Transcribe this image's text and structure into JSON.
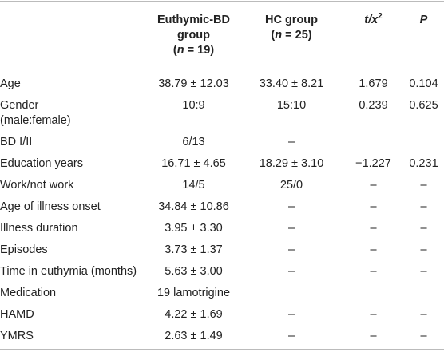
{
  "table": {
    "header": [
      null,
      [
        [
          {
            "text": "Euthymic-BD"
          }
        ],
        [
          {
            "text": "group"
          }
        ],
        [
          {
            "text": "("
          },
          {
            "text": "n",
            "italic": true
          },
          {
            "text": " = 19)"
          }
        ]
      ],
      [
        [
          {
            "text": "HC group"
          }
        ],
        [
          {
            "text": "("
          },
          {
            "text": "n",
            "italic": true
          },
          {
            "text": " = 25)"
          }
        ]
      ],
      [
        [
          {
            "text": "t/x",
            "italic": true
          },
          {
            "text": "2",
            "sup": true
          }
        ]
      ],
      [
        [
          {
            "text": "P",
            "italic": true
          }
        ]
      ]
    ],
    "rows": [
      [
        [
          "Age"
        ],
        "38.79 ± 12.03",
        "33.40 ± 8.21",
        "1.679",
        "0.104"
      ],
      [
        [
          "Gender",
          "(male:female)"
        ],
        "10:9",
        "15:10",
        "0.239",
        "0.625"
      ],
      [
        [
          "BD I/II"
        ],
        "6/13",
        "–",
        null,
        null
      ],
      [
        [
          "Education years"
        ],
        "16.71 ± 4.65",
        "18.29 ± 3.10",
        "−1.227",
        "0.231"
      ],
      [
        [
          "Work/not work"
        ],
        "14/5",
        "25/0",
        "–",
        "–"
      ],
      [
        [
          "Age of illness onset"
        ],
        "34.84 ± 10.86",
        "–",
        "–",
        "–"
      ],
      [
        [
          "Illness duration"
        ],
        "3.95 ± 3.30",
        "–",
        "–",
        "–"
      ],
      [
        [
          "Episodes"
        ],
        "3.73 ± 1.37",
        "–",
        "–",
        "–"
      ],
      [
        [
          "Time in euthymia (months)"
        ],
        "5.63 ± 3.00",
        "–",
        "–",
        "–"
      ],
      [
        [
          "Medication"
        ],
        "19 lamotrigine",
        null,
        null,
        null
      ],
      [
        [
          "HAMD"
        ],
        "4.22 ± 1.69",
        "–",
        "–",
        "–"
      ],
      [
        [
          "YMRS"
        ],
        "2.63 ± 1.49",
        "–",
        "–",
        "–"
      ]
    ]
  }
}
